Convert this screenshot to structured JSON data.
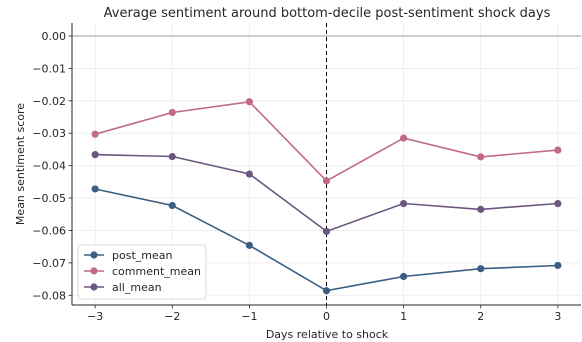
{
  "chart_data": {
    "type": "line",
    "title": "Average sentiment around bottom-decile post-sentiment shock days",
    "xlabel": "Days relative to shock",
    "ylabel": "Mean sentiment score",
    "x": [
      -3,
      -2,
      -1,
      0,
      1,
      2,
      3
    ],
    "x_tick_labels": [
      "−3",
      "−2",
      "−1",
      "0",
      "1",
      "2",
      "3"
    ],
    "y_ticks": [
      0.0,
      -0.01,
      -0.02,
      -0.03,
      -0.04,
      -0.05,
      -0.06,
      -0.07,
      -0.08
    ],
    "y_tick_labels": [
      "0.00",
      "−0.01",
      "−0.02",
      "−0.03",
      "−0.04",
      "−0.05",
      "−0.06",
      "−0.07",
      "−0.08"
    ],
    "xlim": [
      -3.3,
      3.3
    ],
    "ylim": [
      -0.083,
      0.004
    ],
    "grid": true,
    "reference_lines": {
      "horizontal_y": 0.0,
      "vertical_x": 0,
      "vertical_style": "dashed"
    },
    "legend_position": "lower-left",
    "series": [
      {
        "name": "post_mean",
        "color": "#3a5f82",
        "values": [
          -0.0472,
          -0.0523,
          -0.0646,
          -0.0786,
          -0.0742,
          -0.0718,
          -0.0708
        ]
      },
      {
        "name": "comment_mean",
        "color": "#c1698a",
        "values": [
          -0.0303,
          -0.0236,
          -0.0203,
          -0.0447,
          -0.0315,
          -0.0373,
          -0.0352
        ]
      },
      {
        "name": "all_mean",
        "color": "#6b5680",
        "values": [
          -0.0366,
          -0.0372,
          -0.0426,
          -0.0603,
          -0.0517,
          -0.0535,
          -0.0517
        ]
      }
    ]
  }
}
